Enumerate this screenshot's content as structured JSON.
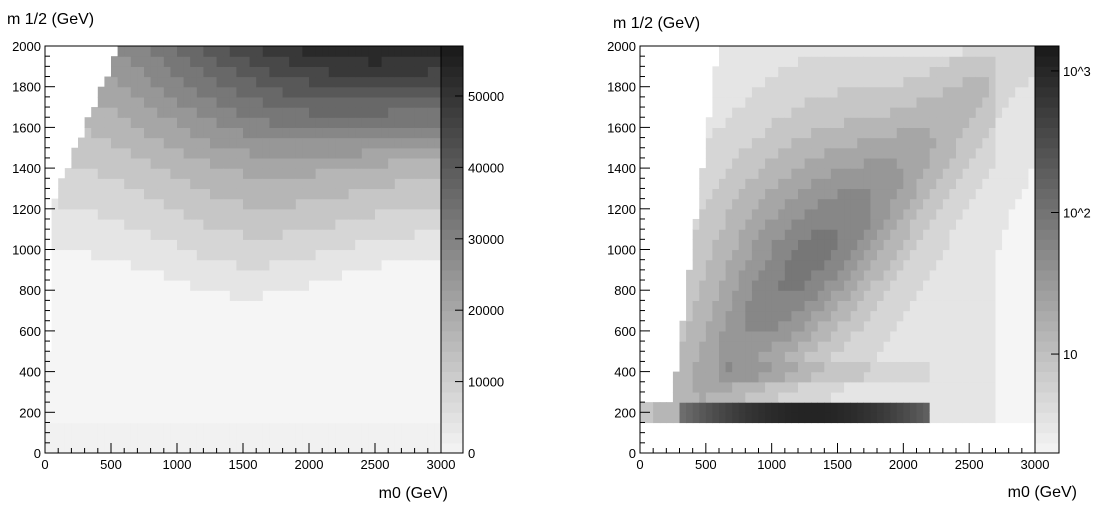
{
  "chart_data": [
    {
      "type": "heatmap",
      "title": "",
      "xlabel": "m0 (GeV)",
      "ylabel": "m 1/2 (GeV)",
      "xlim": [
        0,
        3000
      ],
      "ylim": [
        0,
        2000
      ],
      "x_ticks": [
        "0",
        "500",
        "1000",
        "1500",
        "2000",
        "2500",
        "3000"
      ],
      "y_ticks": [
        "0",
        "200",
        "400",
        "600",
        "800",
        "1000",
        "1200",
        "1400",
        "1600",
        "1800",
        "2000"
      ],
      "colorbar": {
        "scale": "linear",
        "range": [
          0,
          57000
        ],
        "ticks": [
          "0",
          "10000",
          "20000",
          "30000",
          "40000",
          "50000"
        ]
      },
      "grid": false,
      "legend": "none"
    },
    {
      "type": "heatmap",
      "title": "",
      "xlabel": "m0 (GeV)",
      "ylabel": "m 1/2 (GeV)",
      "xlim": [
        0,
        3000
      ],
      "ylim": [
        0,
        2000
      ],
      "x_ticks": [
        "0",
        "500",
        "1000",
        "1500",
        "2000",
        "2500",
        "3000"
      ],
      "y_ticks": [
        "0",
        "200",
        "400",
        "600",
        "800",
        "1000",
        "1200",
        "1400",
        "1600",
        "1800",
        "2000"
      ],
      "colorbar": {
        "scale": "log",
        "range": [
          2,
          1500
        ],
        "ticks": [
          "10",
          "10^2",
          "10^3"
        ]
      },
      "grid": false,
      "legend": "none"
    }
  ]
}
